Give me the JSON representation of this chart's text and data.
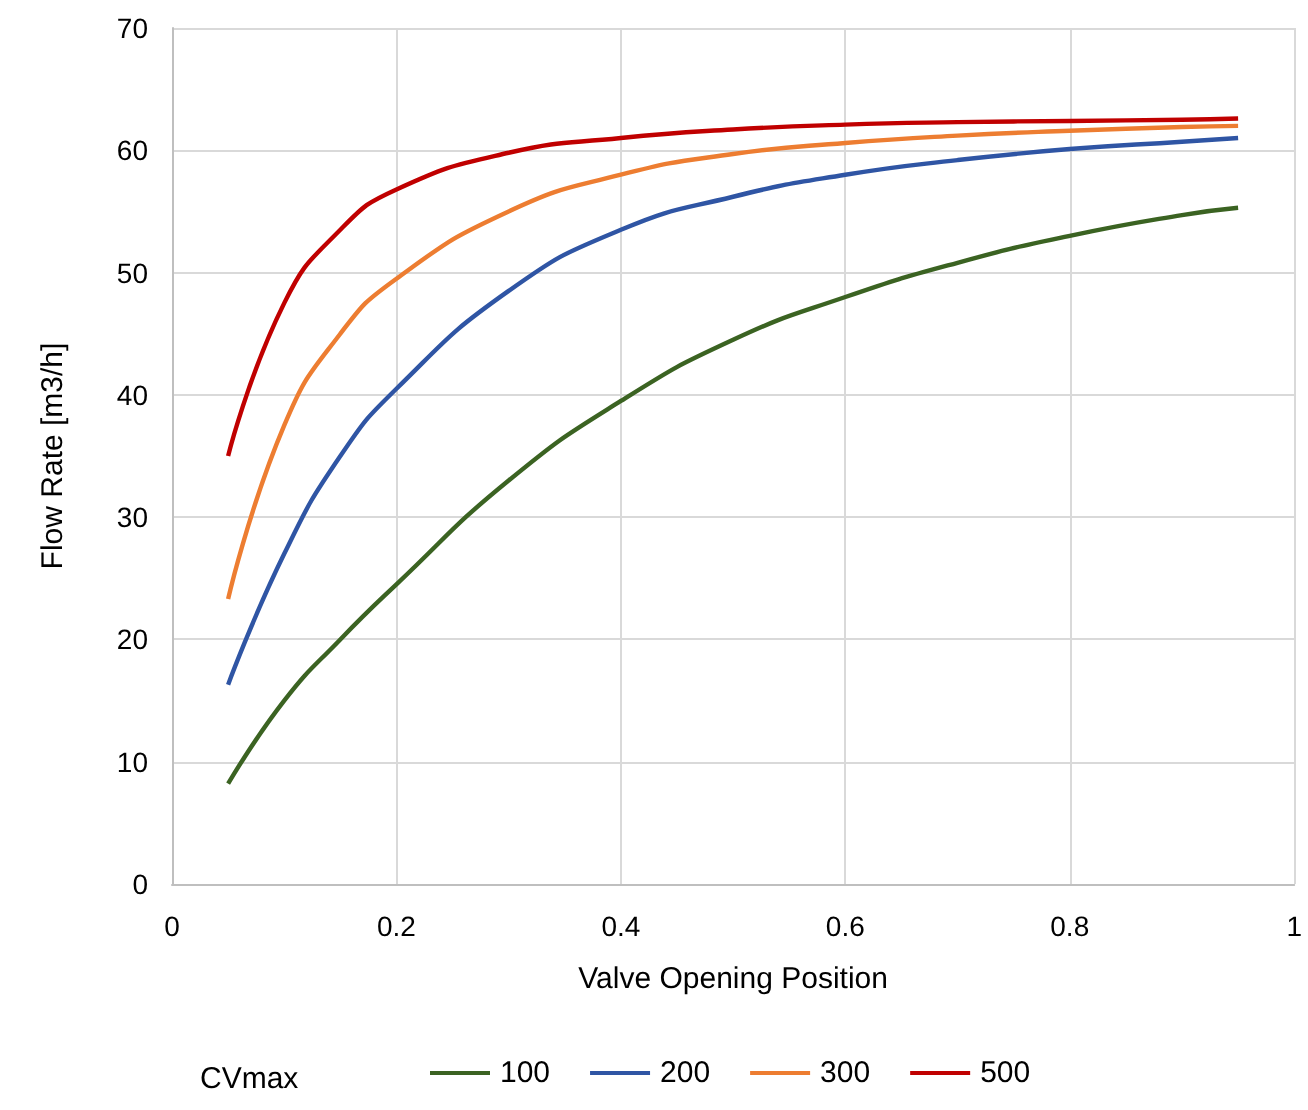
{
  "chart_data": {
    "type": "line",
    "xlabel": "Valve Opening Position",
    "ylabel": "Flow Rate [m3/h]",
    "legend_title": "CVmax",
    "legend": "bottom",
    "grid": true,
    "marker": "none",
    "line_style": "solid",
    "xlim": [
      0,
      1
    ],
    "xticks": [
      0,
      0.2,
      0.4,
      0.6,
      0.8,
      1
    ],
    "ylim": [
      0,
      70
    ],
    "yticks": [
      0,
      10,
      20,
      30,
      40,
      50,
      60,
      70
    ],
    "x": [
      0.05,
      0.1,
      0.15,
      0.2,
      0.3,
      0.4,
      0.5,
      0.6,
      0.7,
      0.8,
      0.9,
      0.95
    ],
    "series": [
      {
        "name": "100",
        "color": "#3b6322",
        "values": [
          8.2,
          15,
          20,
          24.5,
          33,
          39.5,
          44.5,
          48,
          50.8,
          53,
          54.7,
          55.3
        ]
      },
      {
        "name": "200",
        "color": "#2f55a4",
        "values": [
          16.3,
          27,
          35,
          40.5,
          48.5,
          53.5,
          56.2,
          58,
          59.2,
          60.1,
          60.7,
          61
        ]
      },
      {
        "name": "300",
        "color": "#ed7d31",
        "values": [
          23.3,
          37.5,
          45,
          49.5,
          55,
          58,
          59.7,
          60.6,
          61.2,
          61.6,
          61.9,
          62
        ]
      },
      {
        "name": "500",
        "color": "#c00000",
        "values": [
          35,
          47.5,
          53.5,
          56.8,
          59.8,
          61,
          61.7,
          62.1,
          62.3,
          62.4,
          62.5,
          62.6
        ]
      }
    ]
  }
}
